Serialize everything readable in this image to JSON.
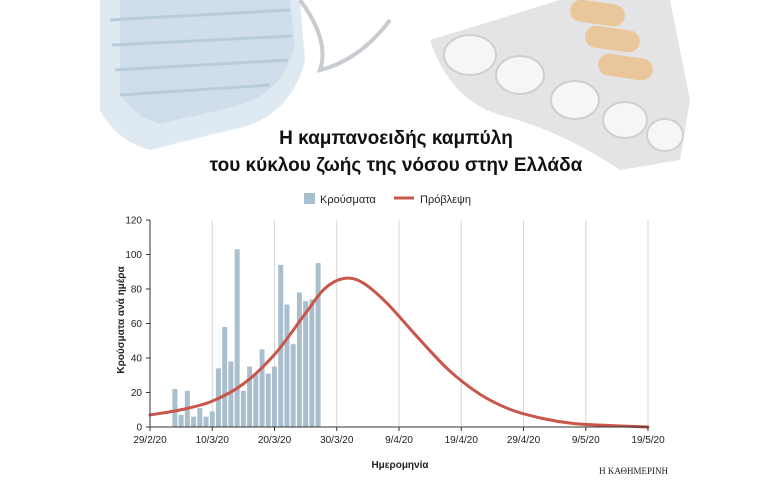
{
  "header": {
    "title_line1": "Η καμπανοειδής καμπύλη",
    "title_line2": "του κύκλου ζωής της νόσου στην Ελλάδα",
    "image_description": "face-mask-and-pill-blister-photo"
  },
  "legend": {
    "cases_label": "Κρούσματα",
    "forecast_label": "Πρόβλεψη"
  },
  "credit": "Η ΚΑΘΗΜΕΡΙΝΗ",
  "colors": {
    "bars": "#a9bfce",
    "forecast": "#c8564b",
    "grid": "#d6d6d6",
    "axis": "#333333"
  },
  "chart_data": {
    "type": "bar+line",
    "xlabel": "Ημερομηνία",
    "ylabel": "Κρούσματα ανά ημέρα",
    "ylim": [
      0,
      120
    ],
    "y_ticks": [
      "0",
      "20",
      "40",
      "60",
      "80",
      "100",
      "120"
    ],
    "x_range": [
      "2020-02-29",
      "2020-05-19"
    ],
    "x_ticks": [
      {
        "date": "2020-02-29",
        "label": "29/2/20"
      },
      {
        "date": "2020-03-10",
        "label": "10/3/20"
      },
      {
        "date": "2020-03-20",
        "label": "20/3/20"
      },
      {
        "date": "2020-03-30",
        "label": "30/3/20"
      },
      {
        "date": "2020-04-09",
        "label": "9/4/20"
      },
      {
        "date": "2020-04-19",
        "label": "19/4/20"
      },
      {
        "date": "2020-04-29",
        "label": "29/4/20"
      },
      {
        "date": "2020-05-09",
        "label": "9/5/20"
      },
      {
        "date": "2020-05-19",
        "label": "19/5/20"
      }
    ],
    "grid": "vertical",
    "legend_position": "top-center",
    "series": [
      {
        "name": "Κρούσματα",
        "type": "bar",
        "dates": [
          "2020-03-04",
          "2020-03-05",
          "2020-03-06",
          "2020-03-07",
          "2020-03-08",
          "2020-03-09",
          "2020-03-10",
          "2020-03-11",
          "2020-03-12",
          "2020-03-13",
          "2020-03-14",
          "2020-03-15",
          "2020-03-16",
          "2020-03-17",
          "2020-03-18",
          "2020-03-19",
          "2020-03-20",
          "2020-03-21",
          "2020-03-22",
          "2020-03-23",
          "2020-03-24",
          "2020-03-25",
          "2020-03-26",
          "2020-03-27",
          "2020-03-28"
        ],
        "values": [
          22,
          7,
          21,
          6,
          11,
          6,
          9,
          34,
          58,
          38,
          103,
          21,
          35,
          31,
          45,
          31,
          35,
          94,
          71,
          48,
          78,
          73,
          74,
          95,
          0
        ]
      },
      {
        "name": "Πρόβλεψη",
        "type": "line",
        "dates": [
          "2020-02-29",
          "2020-03-05",
          "2020-03-10",
          "2020-03-15",
          "2020-03-20",
          "2020-03-25",
          "2020-03-28",
          "2020-03-31",
          "2020-04-03",
          "2020-04-07",
          "2020-04-12",
          "2020-04-17",
          "2020-04-22",
          "2020-04-27",
          "2020-05-02",
          "2020-05-07",
          "2020-05-12",
          "2020-05-19"
        ],
        "values": [
          7,
          10,
          15,
          25,
          42,
          66,
          80,
          86,
          84,
          72,
          52,
          33,
          19,
          10,
          5,
          2,
          1,
          0
        ]
      }
    ]
  }
}
